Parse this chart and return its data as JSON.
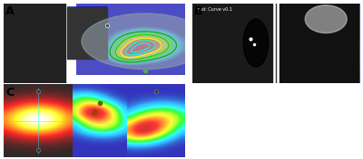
{
  "bg_color": "#f0f0f0",
  "panel_bg": "#111111",
  "label_A": "A",
  "label_B": "B",
  "label_C": "C",
  "fig_width": 4.0,
  "fig_height": 1.76,
  "dpi": 100
}
